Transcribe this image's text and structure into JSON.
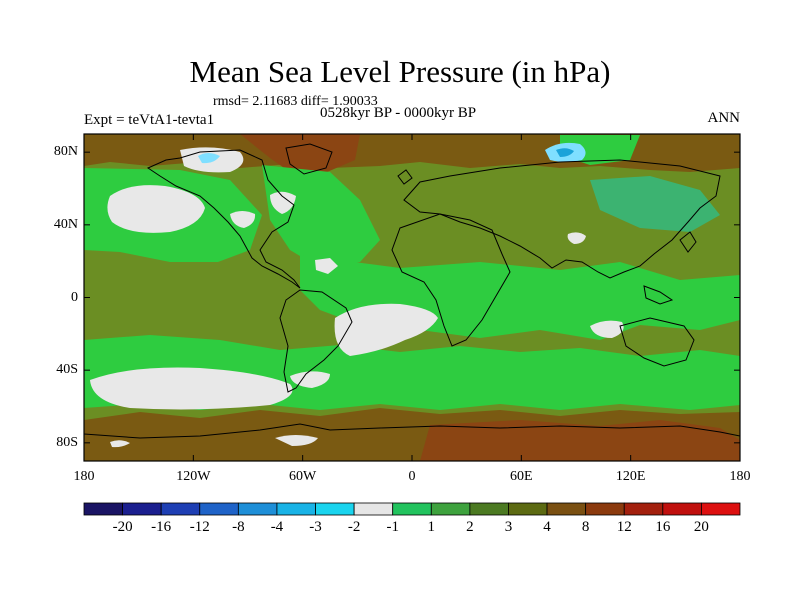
{
  "title": "Mean Sea Level Pressure (in hPa)",
  "stats": "rmsd= 2.11683 diff= 1.90033",
  "period": "0528kyr BP - 0000kyr BP",
  "experiment": "Expt = teVtA1-tevta1",
  "season": "ANN",
  "map": {
    "projection": "cylindrical equidistant",
    "lon_range": [
      -180,
      180
    ],
    "lat_range": [
      -90,
      90
    ],
    "lat_ticks": [
      {
        "value": 80,
        "label": "80N"
      },
      {
        "value": 40,
        "label": "40N"
      },
      {
        "value": 0,
        "label": "0"
      },
      {
        "value": -40,
        "label": "40S"
      },
      {
        "value": -80,
        "label": "80S"
      }
    ],
    "lon_ticks": [
      {
        "value": -180,
        "label": "180"
      },
      {
        "value": -120,
        "label": "120W"
      },
      {
        "value": -60,
        "label": "60W"
      },
      {
        "value": 0,
        "label": "0"
      },
      {
        "value": 60,
        "label": "60E"
      },
      {
        "value": 120,
        "label": "120E"
      },
      {
        "value": 180,
        "label": "180"
      }
    ],
    "background_bin_color": "#6b8e23",
    "field_colors": {
      "very_high": "#a0522d",
      "high": "#8b4513",
      "mid_high": "#7a5a12",
      "mid": "#6b8e23",
      "low": "#3cb371",
      "lower": "#2ecc40",
      "near_zero": "#e8e8e8",
      "neg1": "#7fdfff",
      "neg3": "#1aa3d9",
      "coast": "#000000"
    }
  },
  "colorbar": {
    "colors": [
      "#1a1464",
      "#1b1f8f",
      "#1e3fb4",
      "#1f63c8",
      "#1e8fd8",
      "#19b3e6",
      "#1ad4ee",
      "#e6e6e6",
      "#22c35e",
      "#3ea23e",
      "#4c7a22",
      "#5c6a12",
      "#7a5012",
      "#8b3a0e",
      "#a3200e",
      "#c0100e",
      "#dd1010"
    ],
    "labels": [
      "-20",
      "-16",
      "-12",
      "-8",
      "-4",
      "-3",
      "-2",
      "-1",
      "1",
      "2",
      "3",
      "4",
      "8",
      "12",
      "16",
      "20"
    ]
  }
}
